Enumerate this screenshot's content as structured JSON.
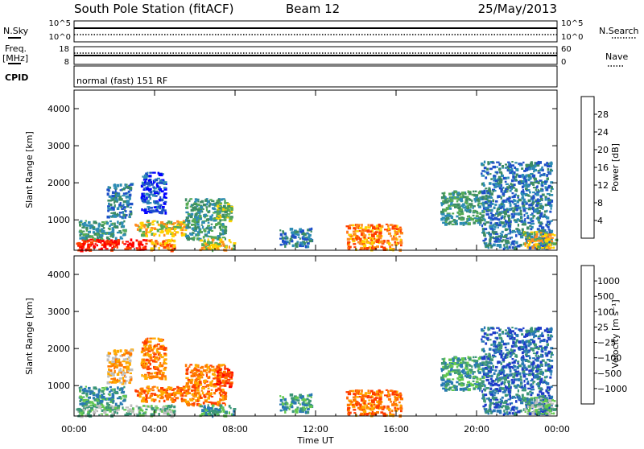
{
  "header": {
    "station": "South Pole Station (fitACF)",
    "beam": "Beam 12",
    "date": "25/May/2013"
  },
  "strip": {
    "nsky_label": "N.Sky",
    "nsearch_label": "N.Search",
    "freq_label_1": "Freq.",
    "freq_label_2": "[MHz]",
    "nave_label": "Nave",
    "cpid_label": "CPID",
    "cpid_value": "normal (fast) 151 RF",
    "noise_ticks": [
      "10^5",
      "10^0"
    ],
    "freq_ticks": [
      "18",
      "8"
    ],
    "nave_ticks": [
      "60",
      "0"
    ]
  },
  "colors": {
    "power_scale": [
      "#0000ff",
      "#1e50c8",
      "#2d8cb4",
      "#3c8c64",
      "#55aa55",
      "#ffd200",
      "#ff8c1e",
      "#ff4000",
      "#ff0000"
    ],
    "velocity_scale": [
      "#1e3cc8",
      "#2878b4",
      "#3c9678",
      "#64c850",
      "#bebebe",
      "#ffaa00",
      "#ff7800",
      "#ff3c00",
      "#ff0000"
    ]
  },
  "chart_data": [
    {
      "type": "heatmap",
      "title": "",
      "xlabel": "Time UT",
      "ylabel": "Slant Range [km]",
      "x_range_hours": [
        0,
        24
      ],
      "x_tick_labels": [
        "00:00",
        "04:00",
        "08:00",
        "12:00",
        "16:00",
        "20:00",
        "00:00"
      ],
      "ylim": [
        180,
        4500
      ],
      "y_tick_values": [
        1000,
        2000,
        3000,
        4000
      ],
      "colorbar_label": "Power [dB]",
      "colorbar_ticks": [
        "4",
        "8",
        "12",
        "16",
        "20",
        "24",
        "28"
      ],
      "echo_regions": [
        {
          "t": [
            0.1,
            3.6
          ],
          "r": [
            200,
            500
          ],
          "level": 8
        },
        {
          "t": [
            3.6,
            5.0
          ],
          "r": [
            200,
            500
          ],
          "level": 6
        },
        {
          "t": [
            0.2,
            2.5
          ],
          "r": [
            500,
            1000
          ],
          "level": 3
        },
        {
          "t": [
            3.0,
            5.5
          ],
          "r": [
            600,
            1000
          ],
          "level": 5
        },
        {
          "t": [
            1.6,
            2.8
          ],
          "r": [
            1100,
            2000
          ],
          "level": 2
        },
        {
          "t": [
            3.3,
            4.5
          ],
          "r": [
            1200,
            2300
          ],
          "level": 1
        },
        {
          "t": [
            5.5,
            7.5
          ],
          "r": [
            500,
            1600
          ],
          "level": 3
        },
        {
          "t": [
            6.2,
            8.0
          ],
          "r": [
            200,
            500
          ],
          "level": 5
        },
        {
          "t": [
            7.0,
            7.8
          ],
          "r": [
            1000,
            1500
          ],
          "level": 4
        },
        {
          "t": [
            13.5,
            16.2
          ],
          "r": [
            220,
            900
          ],
          "level": 6
        },
        {
          "t": [
            10.2,
            11.8
          ],
          "r": [
            300,
            800
          ],
          "level": 2
        },
        {
          "t": [
            18.2,
            20.3
          ],
          "r": [
            900,
            1800
          ],
          "level": 3
        },
        {
          "t": [
            20.2,
            23.7
          ],
          "r": [
            250,
            2600
          ],
          "level": 2
        },
        {
          "t": [
            22.3,
            23.9
          ],
          "r": [
            250,
            700
          ],
          "level": 5
        }
      ]
    },
    {
      "type": "heatmap",
      "title": "",
      "xlabel": "Time UT",
      "ylabel": "Slant Range [km]",
      "x_range_hours": [
        0,
        24
      ],
      "x_tick_labels": [
        "00:00",
        "04:00",
        "08:00",
        "12:00",
        "16:00",
        "20:00",
        "00:00"
      ],
      "ylim": [
        180,
        4500
      ],
      "y_tick_values": [
        1000,
        2000,
        3000,
        4000
      ],
      "colorbar_label": "Velocity [m s⁻¹]",
      "colorbar_ticks": [
        "1000",
        "500",
        "100",
        "25",
        "−25",
        "−100",
        "−500",
        "−1000"
      ],
      "echo_regions": [
        {
          "t": [
            0.1,
            3.6
          ],
          "r": [
            200,
            500
          ],
          "level": 3
        },
        {
          "t": [
            3.6,
            5.0
          ],
          "r": [
            200,
            500
          ],
          "level": 3
        },
        {
          "t": [
            0.2,
            2.5
          ],
          "r": [
            500,
            1000
          ],
          "level": 2
        },
        {
          "t": [
            3.0,
            5.5
          ],
          "r": [
            600,
            1000
          ],
          "level": 6
        },
        {
          "t": [
            1.6,
            2.8
          ],
          "r": [
            1100,
            2000
          ],
          "level": 5
        },
        {
          "t": [
            3.3,
            4.5
          ],
          "r": [
            1200,
            2300
          ],
          "level": 6
        },
        {
          "t": [
            5.5,
            7.5
          ],
          "r": [
            500,
            1600
          ],
          "level": 6
        },
        {
          "t": [
            6.2,
            8.0
          ],
          "r": [
            200,
            500
          ],
          "level": 2
        },
        {
          "t": [
            7.0,
            7.8
          ],
          "r": [
            1000,
            1500
          ],
          "level": 7
        },
        {
          "t": [
            13.5,
            16.2
          ],
          "r": [
            220,
            900
          ],
          "level": 6
        },
        {
          "t": [
            10.2,
            11.8
          ],
          "r": [
            300,
            800
          ],
          "level": 2
        },
        {
          "t": [
            18.2,
            20.3
          ],
          "r": [
            900,
            1800
          ],
          "level": 2
        },
        {
          "t": [
            20.2,
            23.7
          ],
          "r": [
            250,
            2600
          ],
          "level": 1
        },
        {
          "t": [
            22.3,
            23.9
          ],
          "r": [
            250,
            700
          ],
          "level": 3
        }
      ]
    }
  ]
}
